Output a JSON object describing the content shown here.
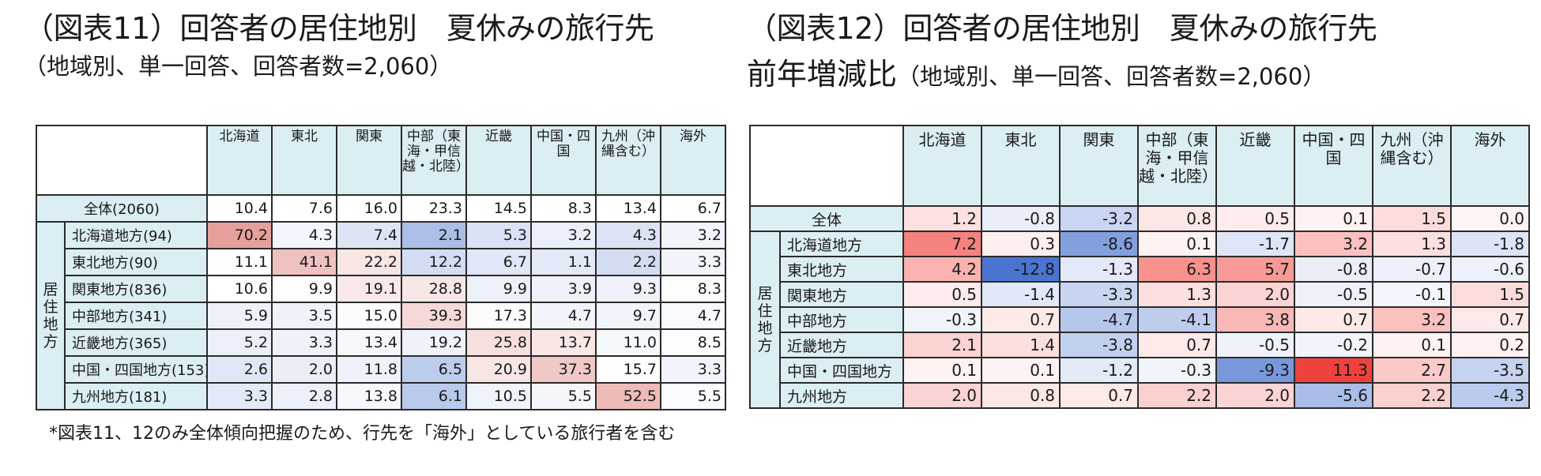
{
  "left": {
    "title": "（図表11）回答者の居住地別　夏休みの旅行先",
    "subtitle": "（地域別、単一回答、回答者数=2,060）",
    "headers": [
      "北海道",
      "東北",
      "関東",
      "中部（東海・甲信越・北陸）",
      "近畿",
      "中国・四国",
      "九州（沖縄含む）",
      "海外"
    ],
    "group_label": "居住地方",
    "total": {
      "label": "全体(2060)",
      "values": [
        "10.4",
        "7.6",
        "16.0",
        "23.3",
        "14.5",
        "8.3",
        "13.4",
        "6.7"
      ]
    },
    "rows": [
      {
        "label": "北海道地方(94)",
        "values": [
          "70.2",
          "4.3",
          "7.4",
          "2.1",
          "5.3",
          "3.2",
          "4.3",
          "3.2"
        ]
      },
      {
        "label": "東北地方(90)",
        "values": [
          "11.1",
          "41.1",
          "22.2",
          "12.2",
          "6.7",
          "1.1",
          "2.2",
          "3.3"
        ]
      },
      {
        "label": "関東地方(836)",
        "values": [
          "10.6",
          "9.9",
          "19.1",
          "28.8",
          "9.9",
          "3.9",
          "9.3",
          "8.3"
        ]
      },
      {
        "label": "中部地方(341)",
        "values": [
          "5.9",
          "3.5",
          "15.0",
          "39.3",
          "17.3",
          "4.7",
          "9.7",
          "4.7"
        ]
      },
      {
        "label": "近畿地方(365)",
        "values": [
          "5.2",
          "3.3",
          "13.4",
          "19.2",
          "25.8",
          "13.7",
          "11.0",
          "8.5"
        ]
      },
      {
        "label": "中国・四国地方(153)",
        "values": [
          "2.6",
          "2.0",
          "11.8",
          "6.5",
          "20.9",
          "37.3",
          "15.7",
          "3.3"
        ]
      },
      {
        "label": "九州地方(181)",
        "values": [
          "3.3",
          "2.8",
          "13.8",
          "6.1",
          "10.5",
          "5.5",
          "52.5",
          "5.5"
        ]
      }
    ],
    "note": "*図表11、12のみ全体傾向把握のため、行先を「海外」としている旅行者を含む"
  },
  "right": {
    "title": "（図表12）回答者の居住地別　夏休みの旅行先",
    "subtitle_main": "前年増減比",
    "subtitle_rest": "（地域別、単一回答、回答者数=2,060）",
    "headers": [
      "北海道",
      "東北",
      "関東",
      "中部（東海・甲信越・北陸）",
      "近畿",
      "中国・四国",
      "九州（沖縄含む）",
      "海外"
    ],
    "group_label": "居住地方",
    "total": {
      "label": "全体",
      "values": [
        "1.2",
        "-0.8",
        "-3.2",
        "0.8",
        "0.5",
        "0.1",
        "1.5",
        "0.0"
      ]
    },
    "rows": [
      {
        "label": "北海道地方",
        "values": [
          "7.2",
          "0.3",
          "-8.6",
          "0.1",
          "-1.7",
          "3.2",
          "1.3",
          "-1.8"
        ]
      },
      {
        "label": "東北地方",
        "values": [
          "4.2",
          "-12.8",
          "-1.3",
          "6.3",
          "5.7",
          "-0.8",
          "-0.7",
          "-0.6"
        ]
      },
      {
        "label": "関東地方",
        "values": [
          "0.5",
          "-1.4",
          "-3.3",
          "1.3",
          "2.0",
          "-0.5",
          "-0.1",
          "1.5"
        ]
      },
      {
        "label": "中部地方",
        "values": [
          "-0.3",
          "0.7",
          "-4.7",
          "-4.1",
          "3.8",
          "0.7",
          "3.2",
          "0.7"
        ]
      },
      {
        "label": "近畿地方",
        "values": [
          "2.1",
          "1.4",
          "-3.8",
          "0.7",
          "-0.5",
          "-0.2",
          "0.1",
          "0.2"
        ]
      },
      {
        "label": "中国・四国地方",
        "values": [
          "0.1",
          "0.1",
          "-1.2",
          "-0.3",
          "-9.3",
          "11.3",
          "2.7",
          "-3.5"
        ]
      },
      {
        "label": "九州地方",
        "values": [
          "2.0",
          "0.8",
          "0.7",
          "2.2",
          "2.0",
          "-5.6",
          "2.2",
          "-4.3"
        ]
      }
    ]
  },
  "colors": {
    "header_bg": "#dbeef3",
    "border": "#2b2b2b",
    "blue_max": "#4a74cf",
    "red_max": "#f0423c",
    "neutral": "#ffffff"
  }
}
